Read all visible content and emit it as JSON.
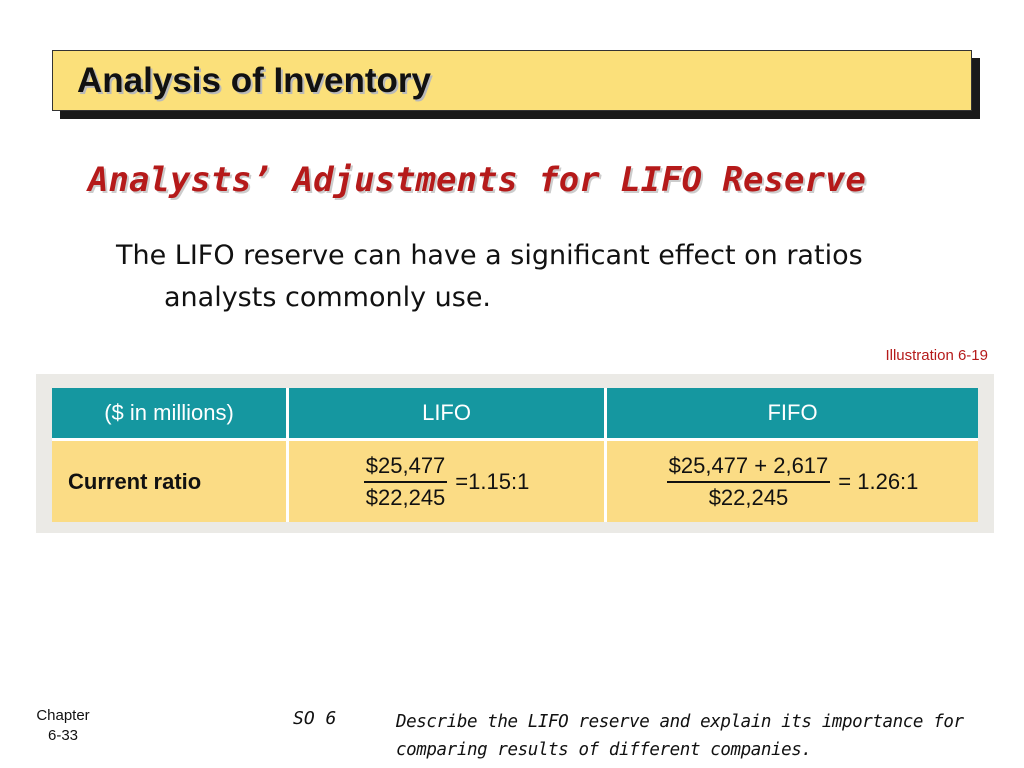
{
  "title": "Analysis of Inventory",
  "subtitle": "Analysts’ Adjustments for LIFO Reserve",
  "body": {
    "line1": "The LIFO reserve can have a significant effect on ratios",
    "line2": "analysts commonly use."
  },
  "illustration": "Illustration 6-19",
  "table": {
    "headers": [
      "($ in millions)",
      "LIFO",
      "FIFO"
    ],
    "row": {
      "label": "Current ratio",
      "lifo": {
        "numerator": "$25,477",
        "denominator": "$22,245",
        "result": "=1.15:1"
      },
      "fifo": {
        "numerator": "$25,477 + 2,617",
        "denominator": "$22,245",
        "result": "= 1.26:1"
      }
    }
  },
  "footer": {
    "chapter_label": "Chapter",
    "chapter_page": "6-33",
    "so": "SO 6",
    "description": "Describe the LIFO reserve and explain its importance for comparing results of different companies."
  },
  "colors": {
    "title_bg": "#fbe07a",
    "subtitle": "#b51a1a",
    "table_header": "#1597a0",
    "table_body": "#fbdc85"
  }
}
